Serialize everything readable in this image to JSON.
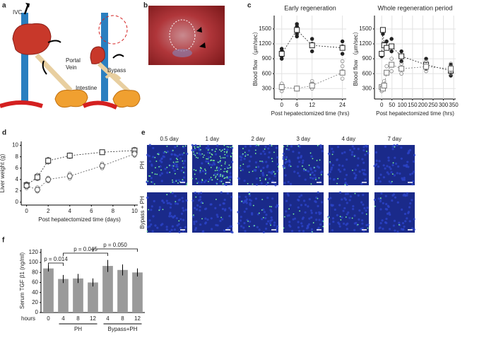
{
  "panel_letters": [
    "a",
    "b",
    "c",
    "d",
    "e",
    "f"
  ],
  "diagram": {
    "ivc": "IVC",
    "portal_vein": [
      "Portal",
      "Vein"
    ],
    "intestine": "Intestine",
    "bypass": "Bypass"
  },
  "micrographs": {
    "columns": [
      "0.5 day",
      "1 day",
      "2 day",
      "3 day",
      "4 day",
      "7 day"
    ],
    "rows": [
      "PH",
      "Bypass + PH"
    ]
  },
  "chart_data": [
    {
      "type": "line",
      "title": "Early regeneration",
      "x_label": "Post hepatectomized time (hrs)",
      "y_label": "Blood flow （μm/sec）",
      "xlim": [
        -3,
        25.5
      ],
      "xticks": [
        0,
        6,
        12,
        24
      ],
      "ylim": [
        90,
        1770
      ],
      "yticks": [
        300,
        600,
        900,
        1200,
        1500
      ],
      "grid": true,
      "series": [
        {
          "color": "#222222",
          "marker": "square",
          "x": [
            0,
            6,
            12,
            24
          ],
          "values": [
            1000,
            1480,
            1170,
            1120
          ],
          "points": {
            "x": [
              0,
              0,
              0,
              0,
              6,
              6,
              6,
              6,
              12,
              12,
              12,
              24,
              24,
              24
            ],
            "values": [
              950,
              1050,
              1100,
              900,
              1400,
              1550,
              1600,
              1350,
              1050,
              1200,
              1300,
              1000,
              1150,
              1250
            ]
          },
          "filled": true
        },
        {
          "color": "#777777",
          "marker": "square",
          "x": [
            0,
            6,
            12,
            24
          ],
          "values": [
            330,
            300,
            360,
            620
          ],
          "points": {
            "x": [
              0,
              0,
              0,
              0,
              6,
              6,
              12,
              12,
              12,
              24,
              24,
              24,
              24
            ],
            "values": [
              250,
              300,
              400,
              350,
              280,
              320,
              300,
              400,
              450,
              500,
              650,
              750,
              850
            ]
          },
          "filled": false
        }
      ]
    },
    {
      "type": "line",
      "title": "Whole regeneration period",
      "x_label": "Post hepatectomized time (hrs)",
      "y_label": "Blood flow （μm/sec）",
      "xlim": [
        -35,
        360
      ],
      "xticks": [
        0,
        50,
        100,
        150,
        200,
        250,
        300,
        350
      ],
      "ylim": [
        90,
        1770
      ],
      "yticks": [
        300,
        600,
        900,
        1200,
        1500
      ],
      "grid": true,
      "series": [
        {
          "color": "#222222",
          "marker": "square",
          "x": [
            0,
            6,
            12,
            24,
            48,
            96,
            216,
            336
          ],
          "values": [
            1000,
            1480,
            1170,
            1120,
            1150,
            950,
            780,
            660
          ],
          "points": {
            "x": [
              0,
              6,
              12,
              24,
              48,
              48,
              96,
              96,
              216,
              216,
              336,
              336
            ],
            "values": [
              950,
              1400,
              1200,
              1250,
              1300,
              1050,
              1050,
              850,
              900,
              700,
              780,
              560
            ]
          },
          "filled": true
        },
        {
          "color": "#777777",
          "marker": "square",
          "x": [
            0,
            6,
            12,
            24,
            48,
            96,
            216,
            336
          ],
          "values": [
            330,
            300,
            360,
            620,
            780,
            700,
            740,
            700
          ],
          "points": {
            "x": [
              0,
              6,
              12,
              24,
              48,
              48,
              96,
              96,
              216,
              216,
              336,
              336
            ],
            "values": [
              250,
              320,
              450,
              750,
              900,
              650,
              800,
              600,
              850,
              650,
              800,
              600
            ]
          },
          "filled": false
        }
      ]
    },
    {
      "type": "line",
      "x_label": "Post hepatectomized time (days)",
      "y_label": "Liver weight (g)",
      "xlim": [
        -0.5,
        10.3
      ],
      "xticks": [
        0,
        2,
        4,
        6,
        8,
        10
      ],
      "ylim": [
        -0.5,
        10.7
      ],
      "yticks": [
        0,
        2,
        4,
        6,
        8,
        10
      ],
      "grid": false,
      "series": [
        {
          "color": "#222222",
          "marker": "square",
          "x": [
            0,
            1,
            2,
            4,
            7,
            10
          ],
          "values": [
            3,
            4.4,
            7.3,
            8.2,
            8.8,
            9.1
          ],
          "points": {
            "x": [
              0,
              0,
              1,
              1,
              2,
              2,
              4,
              4,
              7,
              10,
              10
            ],
            "values": [
              2.7,
              3.3,
              4.1,
              4.8,
              7,
              7.6,
              8,
              8.4,
              8.9,
              8.8,
              9.4
            ]
          },
          "filled": false
        },
        {
          "color": "#555555",
          "marker": "circle",
          "x": [
            0,
            1,
            2,
            4,
            7,
            10
          ],
          "values": [
            2.9,
            2.2,
            4,
            4.6,
            6.4,
            8.5
          ],
          "points": {
            "x": [
              0,
              0,
              1,
              1,
              2,
              2,
              4,
              4,
              7,
              7,
              10,
              10
            ],
            "values": [
              2.5,
              3.2,
              1.9,
              2.6,
              3.7,
              4.3,
              4.2,
              5,
              6,
              6.8,
              8.2,
              8.9
            ]
          },
          "filled": false
        }
      ]
    },
    {
      "type": "bar",
      "y_label": "Serum TGF β1 (ng/ml)",
      "x_prefix": "hours",
      "color": "#9a9a9a",
      "categories": [
        "0",
        "4",
        "8",
        "12",
        "4",
        "8",
        "12"
      ],
      "values": [
        88,
        67,
        68,
        60,
        93,
        85,
        80
      ],
      "errors": [
        6,
        8,
        9,
        8,
        12,
        11,
        8
      ],
      "groups": [
        "PH",
        "Bypass+PH"
      ],
      "ylim": [
        0,
        127
      ],
      "yticks": [
        0,
        20,
        40,
        60,
        80,
        100,
        120
      ],
      "annotations": [
        "p = 0.014",
        "p = 0.045",
        "p = 0.050"
      ]
    }
  ]
}
